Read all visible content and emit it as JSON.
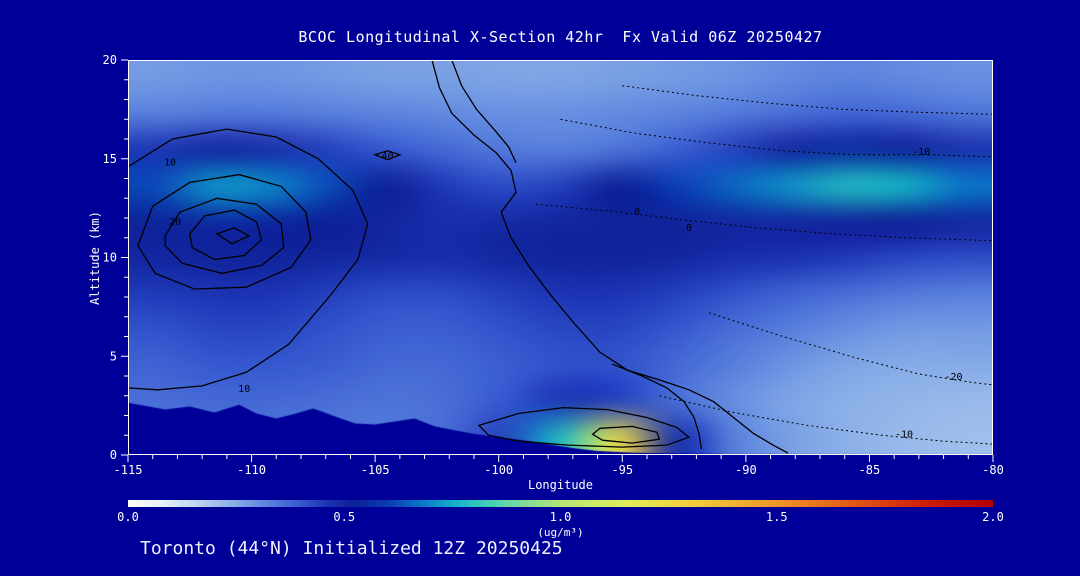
{
  "title": "BCOC Longitudinal X-Section 42hr  Fx Valid 06Z 20250427",
  "footer": "Toronto (44°N) Initialized 12Z 20250425",
  "colors": {
    "background": "#000099",
    "text": "#ffffff",
    "axis": "#ffffff",
    "contour": "#000000"
  },
  "chart_data": {
    "type": "heatmap",
    "title": "BCOC Longitudinal X-Section 42hr  Fx Valid 06Z 20250427",
    "xlabel": "Longitude",
    "ylabel": "Altitude (km)",
    "units": "(ug/m³)",
    "xlim": [
      -115,
      -80
    ],
    "ylim": [
      0,
      20
    ],
    "x_ticks_major": [
      -115,
      -110,
      -105,
      -100,
      -95,
      -90,
      -85,
      -80
    ],
    "y_ticks_major": [
      0,
      5,
      10,
      15,
      20
    ],
    "x": [
      -115,
      -112.5,
      -110,
      -107.5,
      -105,
      -102.5,
      -100,
      -97.5,
      -95,
      -92.5,
      -90,
      -87.5,
      -85,
      -82.5,
      -80
    ],
    "y": [
      0,
      2,
      4,
      6,
      8,
      10,
      12,
      14,
      16,
      18,
      20
    ],
    "values": [
      [
        0.34,
        0.35,
        0.35,
        0.34,
        0.34,
        0.36,
        0.44,
        0.78,
        1.25,
        0.48,
        0.33,
        0.27,
        0.24,
        0.22,
        0.21
      ],
      [
        0.36,
        0.37,
        0.37,
        0.36,
        0.35,
        0.36,
        0.4,
        0.46,
        0.44,
        0.36,
        0.3,
        0.26,
        0.24,
        0.23,
        0.22
      ],
      [
        0.38,
        0.4,
        0.4,
        0.39,
        0.37,
        0.37,
        0.39,
        0.41,
        0.41,
        0.37,
        0.33,
        0.29,
        0.26,
        0.25,
        0.25
      ],
      [
        0.41,
        0.43,
        0.43,
        0.41,
        0.39,
        0.39,
        0.41,
        0.43,
        0.43,
        0.4,
        0.36,
        0.33,
        0.3,
        0.28,
        0.28
      ],
      [
        0.45,
        0.46,
        0.46,
        0.44,
        0.42,
        0.42,
        0.44,
        0.46,
        0.46,
        0.44,
        0.41,
        0.38,
        0.36,
        0.34,
        0.33
      ],
      [
        0.5,
        0.51,
        0.51,
        0.5,
        0.49,
        0.48,
        0.5,
        0.51,
        0.51,
        0.5,
        0.48,
        0.47,
        0.45,
        0.43,
        0.42
      ],
      [
        0.53,
        0.55,
        0.54,
        0.52,
        0.5,
        0.48,
        0.49,
        0.5,
        0.51,
        0.51,
        0.5,
        0.5,
        0.51,
        0.52,
        0.5
      ],
      [
        0.62,
        0.72,
        0.7,
        0.62,
        0.52,
        0.45,
        0.42,
        0.44,
        0.52,
        0.6,
        0.66,
        0.72,
        0.78,
        0.76,
        0.68
      ],
      [
        0.46,
        0.5,
        0.48,
        0.44,
        0.4,
        0.37,
        0.34,
        0.33,
        0.35,
        0.39,
        0.44,
        0.5,
        0.55,
        0.53,
        0.47
      ],
      [
        0.33,
        0.34,
        0.34,
        0.33,
        0.32,
        0.31,
        0.3,
        0.3,
        0.31,
        0.32,
        0.34,
        0.36,
        0.38,
        0.37,
        0.35
      ],
      [
        0.28,
        0.29,
        0.29,
        0.28,
        0.27,
        0.27,
        0.26,
        0.26,
        0.27,
        0.28,
        0.29,
        0.31,
        0.32,
        0.31,
        0.3
      ]
    ],
    "colorbar": {
      "min": 0,
      "max": 2,
      "tick_labels": [
        "0.0",
        "0.5",
        "1.0",
        "1.5",
        "2.0"
      ],
      "stops": [
        [
          0.0,
          "#ffffff"
        ],
        [
          0.08,
          "#e8f0fa"
        ],
        [
          0.16,
          "#bcd4f0"
        ],
        [
          0.24,
          "#8cb0e8"
        ],
        [
          0.32,
          "#5c84de"
        ],
        [
          0.4,
          "#3558d0"
        ],
        [
          0.46,
          "#1c34b4"
        ],
        [
          0.52,
          "#0d1f96"
        ],
        [
          0.6,
          "#0a3cb4"
        ],
        [
          0.68,
          "#0a78c8"
        ],
        [
          0.76,
          "#14b4c8"
        ],
        [
          0.84,
          "#46d2b4"
        ],
        [
          0.92,
          "#82dc96"
        ],
        [
          1.0,
          "#b4e678"
        ],
        [
          1.15,
          "#e0ee5a"
        ],
        [
          1.3,
          "#f0d03c"
        ],
        [
          1.5,
          "#f09628"
        ],
        [
          1.7,
          "#e05014"
        ],
        [
          1.85,
          "#cc1c08"
        ],
        [
          2.0,
          "#b40000"
        ]
      ]
    },
    "terrain": [
      [
        -115,
        2.65
      ],
      [
        -113.5,
        2.3
      ],
      [
        -112.5,
        2.45
      ],
      [
        -111.5,
        2.15
      ],
      [
        -110.5,
        2.55
      ],
      [
        -109.8,
        2.1
      ],
      [
        -109,
        1.85
      ],
      [
        -108.2,
        2.1
      ],
      [
        -107.5,
        2.35
      ],
      [
        -106.5,
        1.9
      ],
      [
        -105.8,
        1.6
      ],
      [
        -105,
        1.55
      ],
      [
        -104.2,
        1.7
      ],
      [
        -103.4,
        1.85
      ],
      [
        -102.6,
        1.45
      ],
      [
        -101.8,
        1.25
      ],
      [
        -100.9,
        1.05
      ],
      [
        -100,
        0.9
      ],
      [
        -99,
        0.75
      ],
      [
        -98,
        0.55
      ],
      [
        -97,
        0.35
      ],
      [
        -96,
        0.2
      ],
      [
        -94.5,
        0.12
      ],
      [
        -92.5,
        0.07
      ],
      [
        -90,
        0.04
      ],
      [
        -85,
        0.02
      ],
      [
        -80,
        0.02
      ]
    ],
    "contours": [
      {
        "level": "10",
        "style": "solid",
        "closed": false,
        "points": [
          [
            -115,
            14.6
          ],
          [
            -113.2,
            16.0
          ],
          [
            -111.0,
            16.5
          ],
          [
            -109.0,
            16.1
          ],
          [
            -107.3,
            15.0
          ],
          [
            -105.9,
            13.4
          ],
          [
            -105.3,
            11.7
          ],
          [
            -105.7,
            9.9
          ],
          [
            -106.8,
            8.1
          ],
          [
            -108.5,
            5.6
          ],
          [
            -110.2,
            4.2
          ],
          [
            -112.0,
            3.5
          ],
          [
            -113.8,
            3.3
          ],
          [
            -115,
            3.4
          ]
        ]
      },
      {
        "level": "20",
        "style": "solid",
        "closed": true,
        "points": [
          [
            -114.6,
            10.6
          ],
          [
            -114.0,
            12.6
          ],
          [
            -112.5,
            13.8
          ],
          [
            -110.5,
            14.2
          ],
          [
            -108.8,
            13.6
          ],
          [
            -107.8,
            12.3
          ],
          [
            -107.6,
            10.9
          ],
          [
            -108.4,
            9.5
          ],
          [
            -110.2,
            8.5
          ],
          [
            -112.3,
            8.4
          ],
          [
            -113.9,
            9.2
          ]
        ]
      },
      {
        "level": "30",
        "style": "solid",
        "closed": true,
        "points": [
          [
            -113.5,
            11.1
          ],
          [
            -112.9,
            12.3
          ],
          [
            -111.4,
            13.0
          ],
          [
            -109.8,
            12.7
          ],
          [
            -108.8,
            11.7
          ],
          [
            -108.7,
            10.5
          ],
          [
            -109.6,
            9.6
          ],
          [
            -111.2,
            9.2
          ],
          [
            -112.8,
            9.7
          ],
          [
            -113.5,
            10.6
          ]
        ]
      },
      {
        "level": "",
        "style": "solid",
        "closed": true,
        "points": [
          [
            -112.5,
            11.2
          ],
          [
            -111.9,
            12.1
          ],
          [
            -110.7,
            12.4
          ],
          [
            -109.8,
            11.8
          ],
          [
            -109.6,
            10.9
          ],
          [
            -110.3,
            10.1
          ],
          [
            -111.5,
            9.9
          ],
          [
            -112.4,
            10.5
          ]
        ]
      },
      {
        "level": "",
        "style": "solid",
        "closed": true,
        "points": [
          [
            -111.4,
            11.2
          ],
          [
            -110.7,
            11.5
          ],
          [
            -110.1,
            11.1
          ],
          [
            -110.8,
            10.7
          ]
        ]
      },
      {
        "level": "40",
        "style": "solid",
        "closed": true,
        "points": [
          [
            -105.0,
            15.2
          ],
          [
            -104.5,
            15.4
          ],
          [
            -104.0,
            15.2
          ],
          [
            -104.5,
            14.95
          ]
        ]
      },
      {
        "level": "10",
        "style": "solid",
        "closed": false,
        "points": [
          [
            -102.7,
            20
          ],
          [
            -102.4,
            18.6
          ],
          [
            -101.9,
            17.3
          ],
          [
            -101.0,
            16.2
          ],
          [
            -100.1,
            15.3
          ],
          [
            -99.5,
            14.4
          ],
          [
            -99.3,
            13.3
          ],
          [
            -99.9,
            12.3
          ],
          [
            -99.5,
            11.0
          ],
          [
            -98.8,
            9.6
          ],
          [
            -97.9,
            8.1
          ],
          [
            -96.9,
            6.6
          ],
          [
            -95.9,
            5.2
          ],
          [
            -94.8,
            4.3
          ],
          [
            -93.5,
            3.8
          ],
          [
            -92.3,
            3.3
          ],
          [
            -91.3,
            2.7
          ],
          [
            -90.5,
            1.9
          ],
          [
            -89.7,
            1.1
          ],
          [
            -88.9,
            0.5
          ],
          [
            -88.3,
            0.1
          ]
        ]
      },
      {
        "level": "",
        "style": "solid",
        "closed": false,
        "points": [
          [
            -101.9,
            20
          ],
          [
            -101.5,
            18.7
          ],
          [
            -100.9,
            17.5
          ],
          [
            -100.2,
            16.5
          ],
          [
            -99.6,
            15.6
          ],
          [
            -99.3,
            14.8
          ]
        ]
      },
      {
        "level": "",
        "style": "solid",
        "closed": false,
        "points": [
          [
            -95.4,
            4.6
          ],
          [
            -94.2,
            4.0
          ],
          [
            -93.2,
            3.4
          ],
          [
            -92.5,
            2.7
          ],
          [
            -92.1,
            1.9
          ],
          [
            -91.9,
            1.1
          ],
          [
            -91.8,
            0.3
          ]
        ]
      },
      {
        "level": "",
        "style": "solid",
        "closed": true,
        "points": [
          [
            -100.8,
            1.5
          ],
          [
            -99.2,
            2.1
          ],
          [
            -97.4,
            2.4
          ],
          [
            -95.6,
            2.3
          ],
          [
            -94.0,
            1.9
          ],
          [
            -92.8,
            1.4
          ],
          [
            -92.3,
            0.9
          ],
          [
            -93.2,
            0.5
          ],
          [
            -95.0,
            0.4
          ],
          [
            -97.2,
            0.5
          ],
          [
            -99.2,
            0.7
          ],
          [
            -100.4,
            1.0
          ]
        ]
      },
      {
        "level": "",
        "style": "solid",
        "closed": true,
        "points": [
          [
            -95.9,
            1.35
          ],
          [
            -94.6,
            1.45
          ],
          [
            -93.6,
            1.15
          ],
          [
            -93.5,
            0.8
          ],
          [
            -94.6,
            0.6
          ],
          [
            -95.8,
            0.75
          ],
          [
            -96.2,
            1.05
          ]
        ]
      },
      {
        "level": "-10",
        "style": "dotted",
        "closed": false,
        "points": [
          [
            -97.5,
            17.0
          ],
          [
            -94.5,
            16.3
          ],
          [
            -91.5,
            15.8
          ],
          [
            -88.5,
            15.4
          ],
          [
            -85.5,
            15.2
          ],
          [
            -82.5,
            15.2
          ],
          [
            -80,
            15.1
          ]
        ]
      },
      {
        "level": "",
        "style": "dotted",
        "closed": false,
        "points": [
          [
            -95,
            18.7
          ],
          [
            -92,
            18.2
          ],
          [
            -89,
            17.8
          ],
          [
            -86,
            17.5
          ],
          [
            -83,
            17.35
          ],
          [
            -80,
            17.25
          ]
        ]
      },
      {
        "level": "0",
        "style": "dotted",
        "closed": false,
        "points": [
          [
            -98.5,
            12.7
          ],
          [
            -95.5,
            12.35
          ],
          [
            -92.5,
            11.9
          ],
          [
            -89.5,
            11.5
          ],
          [
            -86.5,
            11.2
          ],
          [
            -83.5,
            11.0
          ],
          [
            -80,
            10.85
          ]
        ]
      },
      {
        "level": "-20",
        "style": "dotted",
        "closed": false,
        "points": [
          [
            -91.5,
            7.2
          ],
          [
            -88.5,
            6.0
          ],
          [
            -85.5,
            4.9
          ],
          [
            -83,
            4.1
          ],
          [
            -81,
            3.7
          ],
          [
            -80,
            3.55
          ]
        ]
      },
      {
        "level": "-10",
        "style": "dotted",
        "closed": false,
        "points": [
          [
            -93.5,
            3.0
          ],
          [
            -90.5,
            2.15
          ],
          [
            -87.5,
            1.5
          ],
          [
            -84.5,
            1.0
          ],
          [
            -82,
            0.7
          ],
          [
            -80,
            0.55
          ]
        ]
      }
    ],
    "contour_labels": [
      {
        "text": "10",
        "lon": -113.3,
        "alt": 14.8
      },
      {
        "text": "20",
        "lon": -113.1,
        "alt": 11.8
      },
      {
        "text": "10",
        "lon": -110.3,
        "alt": 3.35
      },
      {
        "text": "40",
        "lon": -104.5,
        "alt": 15.15
      },
      {
        "text": "0",
        "lon": -94.4,
        "alt": 12.3
      },
      {
        "text": "0",
        "lon": -92.3,
        "alt": 11.5
      },
      {
        "text": "-10",
        "lon": -82.9,
        "alt": 15.35
      },
      {
        "text": "-20",
        "lon": -81.6,
        "alt": 3.95
      },
      {
        "text": "-10",
        "lon": -83.6,
        "alt": 1.05
      }
    ]
  }
}
